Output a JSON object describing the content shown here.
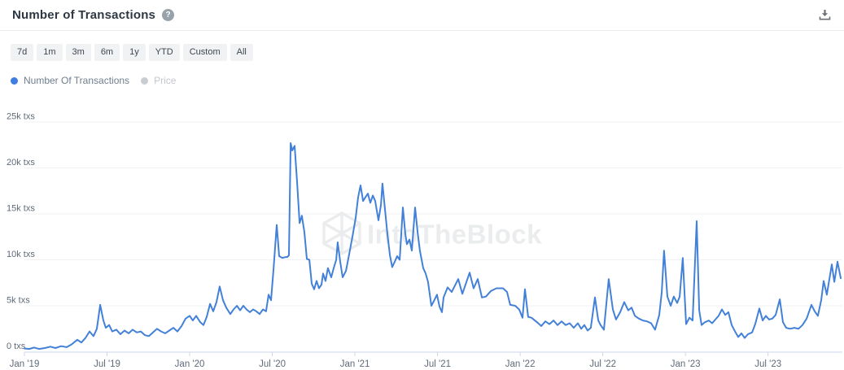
{
  "header": {
    "title": "Number of Transactions",
    "help_icon": "?",
    "download_icon": "download"
  },
  "controls": {
    "ranges": [
      "7d",
      "1m",
      "3m",
      "6m",
      "1y",
      "YTD",
      "Custom",
      "All"
    ]
  },
  "legend": [
    {
      "label": "Number Of Transactions",
      "color": "#3f7de0",
      "active": true
    },
    {
      "label": "Price",
      "color": "#c9cdd2",
      "active": false
    }
  ],
  "watermark": {
    "text": "IntoTheBlock"
  },
  "colors": {
    "line": "#4381d8",
    "grid": "#f0f1f3",
    "axis": "#ccd6eb",
    "axis_label": "#5f6b78",
    "watermark": "#ebecee",
    "title": "#2d3843",
    "button_bg": "#f1f2f4"
  },
  "chart_data": {
    "type": "line",
    "title": "Number of Transactions",
    "xlabel": "",
    "ylabel": "txs",
    "y_unit": "thousands of transactions",
    "x_unit": "months since Jan 2019",
    "grid": true,
    "legend_position": "top-left",
    "ylim": [
      0,
      25.6
    ],
    "xlim": [
      0,
      59.4
    ],
    "y_axis": {
      "tick_values": [
        25,
        20,
        15,
        10,
        5,
        0
      ],
      "tick_labels": [
        "25k txs",
        "20k txs",
        "15k txs",
        "10k txs",
        "5k txs",
        "0 txs"
      ]
    },
    "x_axis": {
      "tick_months": [
        0,
        6,
        12,
        18,
        24,
        30,
        36,
        42,
        48,
        54
      ],
      "tick_labels": [
        "Jan '19",
        "Jul '19",
        "Jan '20",
        "Jul '20",
        "Jan '21",
        "Jul '21",
        "Jan '22",
        "Jul '22",
        "Jan '23",
        "Jul '23"
      ]
    },
    "series": [
      {
        "name": "Number Of Transactions",
        "color": "#4381d8",
        "points": [
          [
            0,
            0.35
          ],
          [
            0.35,
            0.3
          ],
          [
            0.71,
            0.45
          ],
          [
            1.06,
            0.3
          ],
          [
            1.48,
            0.4
          ],
          [
            1.89,
            0.55
          ],
          [
            2.25,
            0.4
          ],
          [
            2.66,
            0.6
          ],
          [
            3.07,
            0.5
          ],
          [
            3.43,
            0.8
          ],
          [
            3.84,
            1.3
          ],
          [
            4.14,
            1.0
          ],
          [
            4.43,
            1.5
          ],
          [
            4.73,
            2.2
          ],
          [
            5.02,
            1.7
          ],
          [
            5.26,
            2.5
          ],
          [
            5.5,
            5.1
          ],
          [
            5.73,
            3.4
          ],
          [
            5.91,
            2.6
          ],
          [
            6.15,
            2.9
          ],
          [
            6.38,
            2.2
          ],
          [
            6.68,
            2.4
          ],
          [
            6.97,
            1.9
          ],
          [
            7.27,
            2.3
          ],
          [
            7.57,
            2.0
          ],
          [
            7.86,
            2.4
          ],
          [
            8.16,
            2.1
          ],
          [
            8.45,
            2.2
          ],
          [
            8.75,
            1.8
          ],
          [
            9.04,
            1.7
          ],
          [
            9.34,
            2.1
          ],
          [
            9.63,
            2.5
          ],
          [
            9.93,
            2.2
          ],
          [
            10.22,
            2.0
          ],
          [
            10.52,
            2.3
          ],
          [
            10.82,
            2.6
          ],
          [
            11.11,
            2.2
          ],
          [
            11.41,
            2.8
          ],
          [
            11.7,
            3.6
          ],
          [
            12.0,
            3.9
          ],
          [
            12.23,
            3.4
          ],
          [
            12.47,
            3.9
          ],
          [
            12.77,
            3.2
          ],
          [
            13.0,
            2.9
          ],
          [
            13.24,
            3.8
          ],
          [
            13.48,
            5.2
          ],
          [
            13.71,
            4.4
          ],
          [
            13.95,
            5.4
          ],
          [
            14.18,
            7.1
          ],
          [
            14.42,
            5.6
          ],
          [
            14.66,
            4.8
          ],
          [
            14.95,
            4.1
          ],
          [
            15.19,
            4.6
          ],
          [
            15.43,
            5.0
          ],
          [
            15.66,
            4.5
          ],
          [
            15.9,
            5.0
          ],
          [
            16.13,
            4.6
          ],
          [
            16.37,
            4.3
          ],
          [
            16.61,
            4.6
          ],
          [
            16.84,
            4.4
          ],
          [
            17.08,
            4.1
          ],
          [
            17.32,
            4.6
          ],
          [
            17.55,
            4.4
          ],
          [
            17.73,
            6.2
          ],
          [
            17.91,
            5.6
          ],
          [
            18.09,
            9.0
          ],
          [
            18.32,
            13.8
          ],
          [
            18.5,
            10.4
          ],
          [
            18.74,
            10.2
          ],
          [
            18.97,
            10.3
          ],
          [
            19.09,
            10.3
          ],
          [
            19.21,
            10.5
          ],
          [
            19.33,
            22.7
          ],
          [
            19.45,
            21.9
          ],
          [
            19.62,
            22.4
          ],
          [
            19.8,
            18.5
          ],
          [
            19.98,
            14.0
          ],
          [
            20.15,
            14.8
          ],
          [
            20.33,
            13.0
          ],
          [
            20.51,
            10.1
          ],
          [
            20.69,
            10.0
          ],
          [
            20.86,
            7.4
          ],
          [
            21.04,
            6.8
          ],
          [
            21.22,
            7.7
          ],
          [
            21.39,
            6.9
          ],
          [
            21.57,
            7.3
          ],
          [
            21.69,
            8.5
          ],
          [
            21.87,
            7.7
          ],
          [
            22.04,
            9.1
          ],
          [
            22.28,
            8.1
          ],
          [
            22.46,
            9.1
          ],
          [
            22.64,
            10.0
          ],
          [
            22.75,
            11.9
          ],
          [
            22.93,
            9.8
          ],
          [
            23.11,
            8.1
          ],
          [
            23.35,
            8.8
          ],
          [
            23.58,
            10.6
          ],
          [
            23.82,
            12.5
          ],
          [
            24.05,
            14.5
          ],
          [
            24.23,
            16.8
          ],
          [
            24.41,
            18.1
          ],
          [
            24.59,
            16.4
          ],
          [
            24.76,
            16.8
          ],
          [
            24.94,
            17.2
          ],
          [
            25.12,
            16.2
          ],
          [
            25.3,
            17.0
          ],
          [
            25.47,
            16.4
          ],
          [
            25.71,
            14.3
          ],
          [
            25.89,
            16.0
          ],
          [
            26.0,
            18.3
          ],
          [
            26.18,
            15.5
          ],
          [
            26.36,
            12.8
          ],
          [
            26.54,
            10.5
          ],
          [
            26.71,
            9.2
          ],
          [
            26.89,
            9.8
          ],
          [
            27.07,
            10.4
          ],
          [
            27.25,
            10.0
          ],
          [
            27.48,
            15.7
          ],
          [
            27.66,
            12.8
          ],
          [
            27.78,
            11.7
          ],
          [
            27.96,
            12.2
          ],
          [
            28.13,
            11.0
          ],
          [
            28.37,
            15.7
          ],
          [
            28.55,
            13.0
          ],
          [
            28.72,
            11.0
          ],
          [
            28.96,
            9.1
          ],
          [
            29.14,
            8.5
          ],
          [
            29.31,
            7.6
          ],
          [
            29.55,
            5.0
          ],
          [
            29.73,
            5.5
          ],
          [
            29.96,
            6.2
          ],
          [
            30.14,
            4.9
          ],
          [
            30.32,
            4.3
          ],
          [
            30.44,
            5.9
          ],
          [
            30.73,
            7.0
          ],
          [
            31.03,
            6.5
          ],
          [
            31.5,
            7.9
          ],
          [
            31.8,
            6.3
          ],
          [
            32.33,
            8.6
          ],
          [
            32.62,
            6.9
          ],
          [
            32.92,
            7.9
          ],
          [
            33.22,
            5.9
          ],
          [
            33.51,
            6.0
          ],
          [
            33.87,
            6.6
          ],
          [
            34.28,
            6.9
          ],
          [
            34.75,
            6.9
          ],
          [
            35.05,
            6.5
          ],
          [
            35.28,
            5.1
          ],
          [
            35.64,
            5.0
          ],
          [
            35.93,
            4.6
          ],
          [
            36.17,
            3.7
          ],
          [
            36.35,
            6.8
          ],
          [
            36.58,
            3.8
          ],
          [
            36.82,
            3.7
          ],
          [
            37.23,
            3.2
          ],
          [
            37.53,
            2.8
          ],
          [
            37.83,
            3.3
          ],
          [
            38.12,
            3.0
          ],
          [
            38.42,
            3.4
          ],
          [
            38.71,
            2.9
          ],
          [
            39.01,
            3.3
          ],
          [
            39.3,
            2.9
          ],
          [
            39.6,
            3.1
          ],
          [
            39.89,
            2.6
          ],
          [
            40.19,
            3.1
          ],
          [
            40.43,
            2.5
          ],
          [
            40.66,
            2.9
          ],
          [
            40.9,
            2.3
          ],
          [
            41.13,
            2.6
          ],
          [
            41.43,
            5.9
          ],
          [
            41.67,
            3.4
          ],
          [
            41.84,
            2.9
          ],
          [
            42.08,
            2.4
          ],
          [
            42.43,
            7.9
          ],
          [
            42.73,
            4.6
          ],
          [
            42.96,
            3.5
          ],
          [
            43.26,
            4.3
          ],
          [
            43.56,
            5.4
          ],
          [
            43.85,
            4.5
          ],
          [
            44.09,
            4.8
          ],
          [
            44.33,
            3.9
          ],
          [
            44.62,
            3.6
          ],
          [
            44.92,
            3.4
          ],
          [
            45.21,
            3.3
          ],
          [
            45.51,
            3.1
          ],
          [
            45.8,
            2.4
          ],
          [
            46.1,
            4.0
          ],
          [
            46.28,
            6.5
          ],
          [
            46.45,
            11.0
          ],
          [
            46.69,
            6.0
          ],
          [
            46.93,
            5.0
          ],
          [
            47.16,
            6.0
          ],
          [
            47.4,
            5.3
          ],
          [
            47.58,
            6.0
          ],
          [
            47.81,
            10.2
          ],
          [
            48.05,
            3.0
          ],
          [
            48.29,
            3.7
          ],
          [
            48.52,
            3.4
          ],
          [
            48.82,
            14.2
          ],
          [
            49.0,
            4.5
          ],
          [
            49.17,
            2.9
          ],
          [
            49.41,
            3.2
          ],
          [
            49.7,
            3.4
          ],
          [
            49.94,
            3.1
          ],
          [
            50.18,
            3.5
          ],
          [
            50.41,
            3.9
          ],
          [
            50.65,
            4.6
          ],
          [
            50.89,
            4.0
          ],
          [
            51.12,
            4.3
          ],
          [
            51.36,
            2.9
          ],
          [
            51.6,
            2.2
          ],
          [
            51.83,
            1.6
          ],
          [
            52.07,
            2.0
          ],
          [
            52.3,
            1.5
          ],
          [
            52.54,
            1.9
          ],
          [
            52.84,
            2.1
          ],
          [
            53.07,
            3.0
          ],
          [
            53.37,
            4.7
          ],
          [
            53.61,
            3.4
          ],
          [
            53.84,
            3.9
          ],
          [
            54.08,
            3.5
          ],
          [
            54.31,
            3.6
          ],
          [
            54.55,
            4.0
          ],
          [
            54.85,
            5.7
          ],
          [
            55.08,
            3.2
          ],
          [
            55.32,
            2.6
          ],
          [
            55.61,
            2.5
          ],
          [
            55.91,
            2.6
          ],
          [
            56.21,
            2.5
          ],
          [
            56.5,
            2.9
          ],
          [
            56.8,
            3.6
          ],
          [
            57.15,
            5.1
          ],
          [
            57.39,
            4.4
          ],
          [
            57.62,
            3.9
          ],
          [
            57.86,
            5.6
          ],
          [
            58.04,
            7.7
          ],
          [
            58.27,
            6.2
          ],
          [
            58.63,
            9.5
          ],
          [
            58.81,
            7.6
          ],
          [
            59.04,
            9.8
          ],
          [
            59.28,
            8.0
          ]
        ]
      }
    ]
  }
}
